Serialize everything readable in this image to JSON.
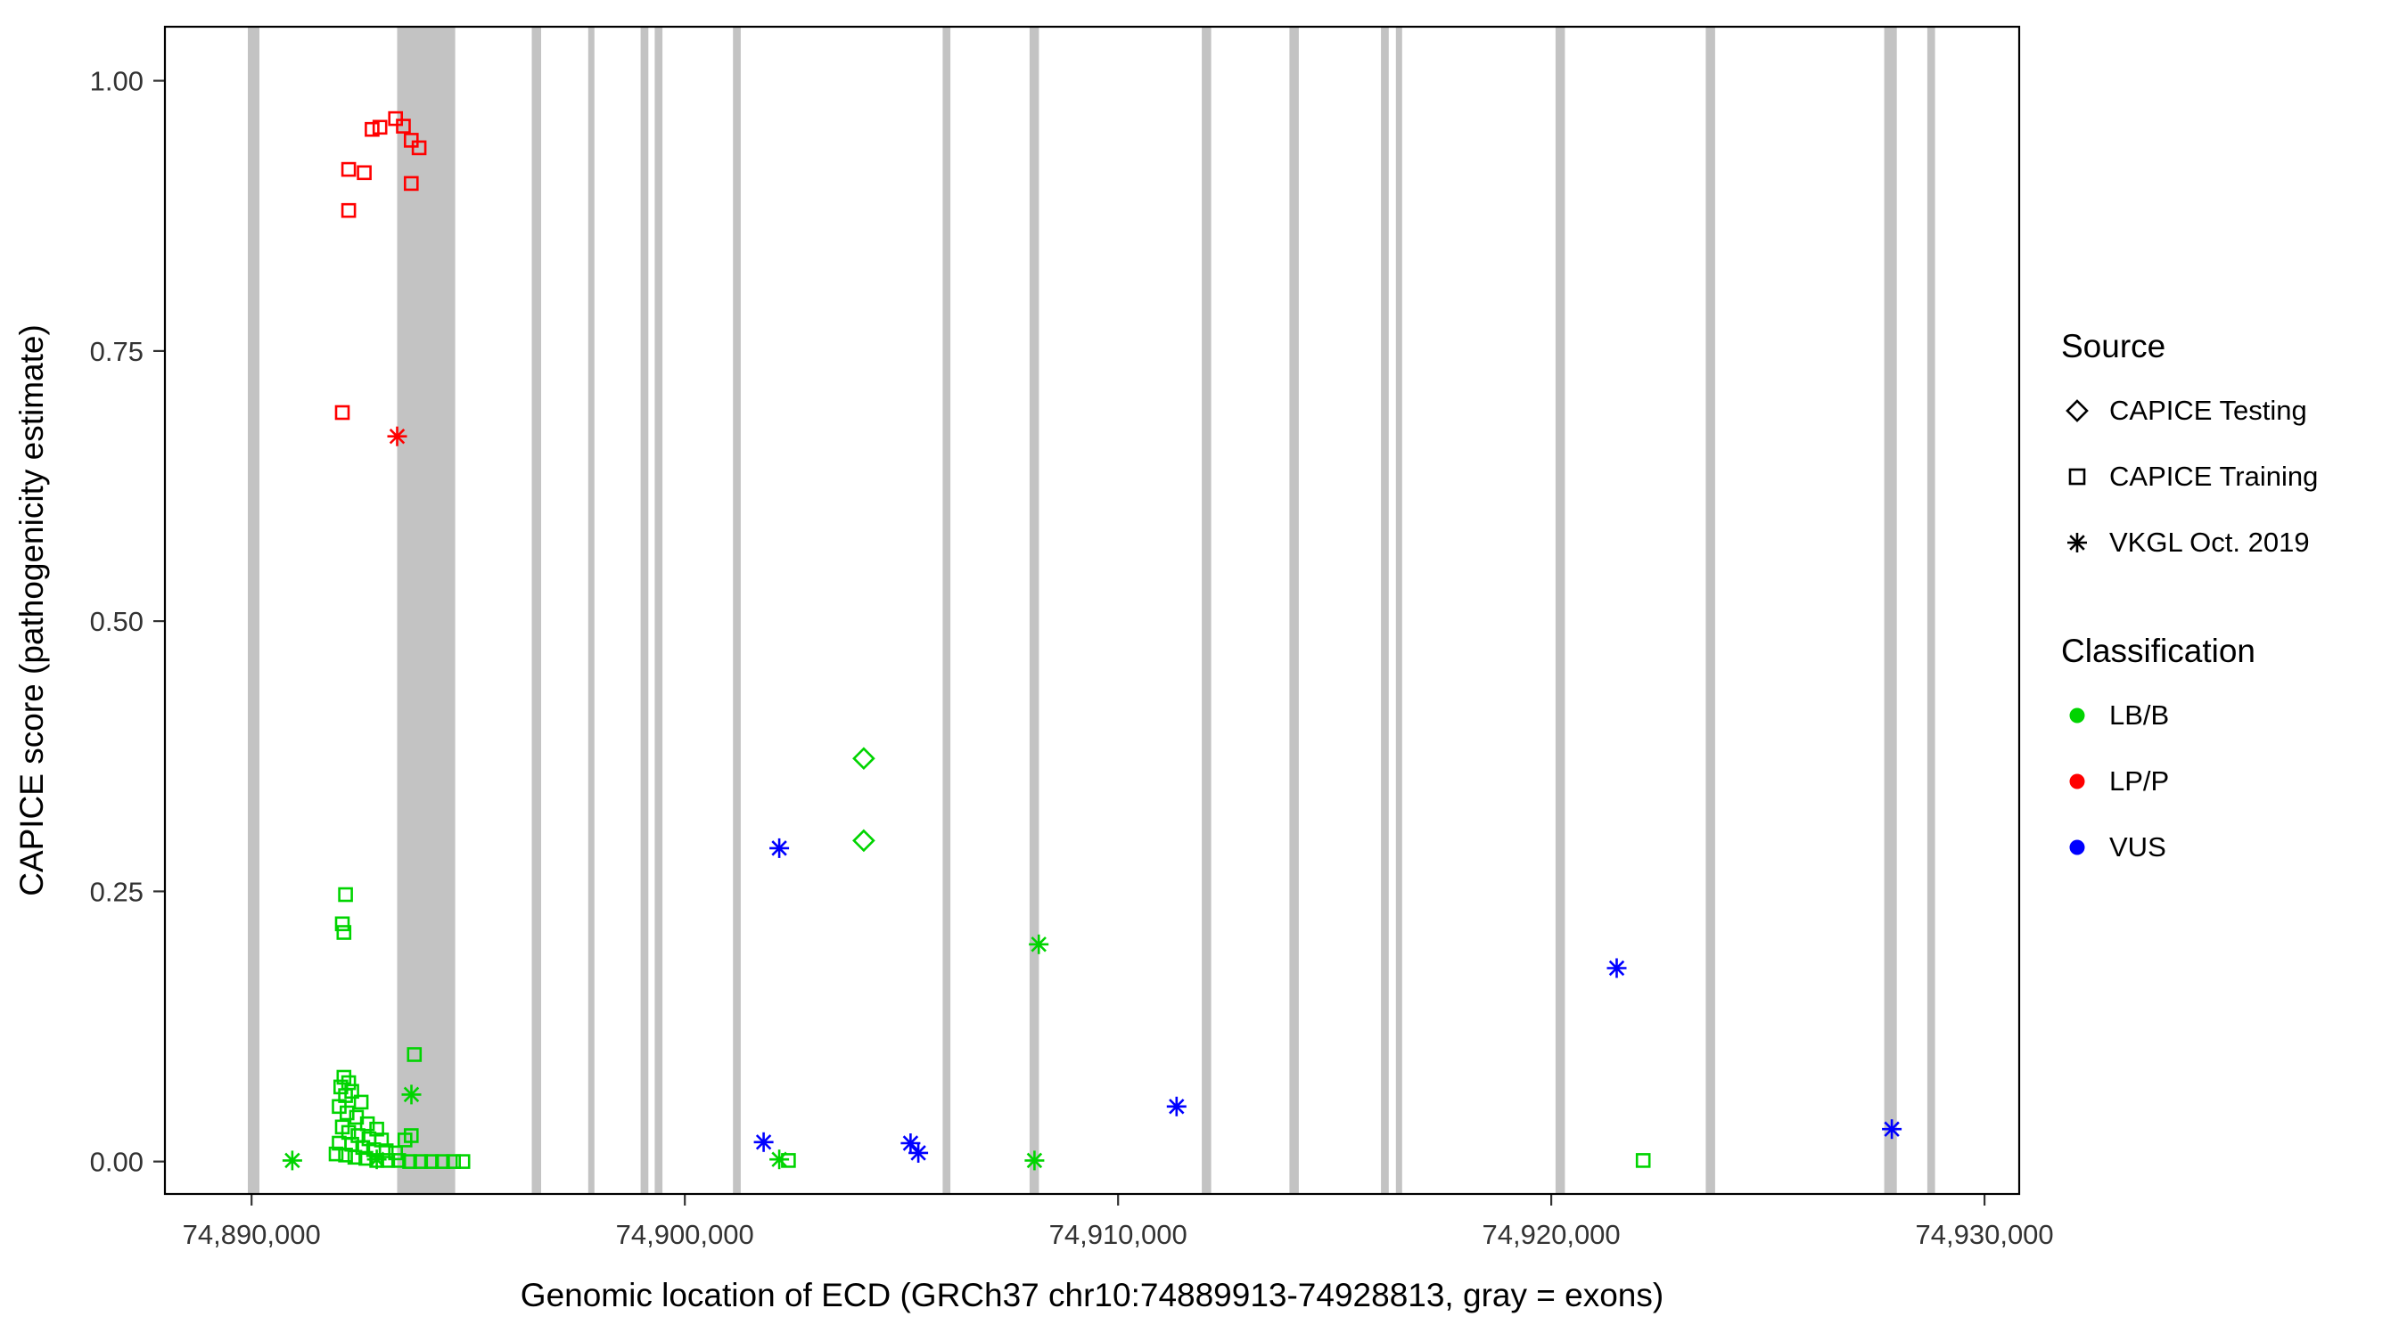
{
  "chart_data": {
    "type": "scatter",
    "title": "",
    "xlabel": "Genomic location of ECD (GRCh37 chr10:74889913-74928813, gray = exons)",
    "ylabel": "CAPICE score (pathogenicity estimate)",
    "x_domain": [
      74888000,
      74930800
    ],
    "y_domain": [
      -0.03,
      1.05
    ],
    "grid": false,
    "legend_position": "right",
    "x_ticks": {
      "values": [
        74890000,
        74900000,
        74910000,
        74920000,
        74930000
      ],
      "labels": [
        "74,890,000",
        "74,900,000",
        "74,910,000",
        "74,920,000",
        "74,930,000"
      ]
    },
    "y_ticks": {
      "values": [
        0.0,
        0.25,
        0.5,
        0.75,
        1.0
      ],
      "labels": [
        "0.00",
        "0.25",
        "0.50",
        "0.75",
        "1.00"
      ]
    },
    "exon_color": "#c3c3c3",
    "exons": [
      [
        74889913,
        74890180
      ],
      [
        74893360,
        74894700
      ],
      [
        74896468,
        74896684
      ],
      [
        74897769,
        74897913
      ],
      [
        74898979,
        74899159
      ],
      [
        74899305,
        74899485
      ],
      [
        74901111,
        74901291
      ],
      [
        74905952,
        74906132
      ],
      [
        74907958,
        74908174
      ],
      [
        74911932,
        74912148
      ],
      [
        74913955,
        74914171
      ],
      [
        74916069,
        74916249
      ],
      [
        74916412,
        74916556
      ],
      [
        74920098,
        74920314
      ],
      [
        74923566,
        74923782
      ],
      [
        74927684,
        74927974
      ],
      [
        74928678,
        74928858
      ]
    ],
    "colors": {
      "LB/B": "#00d400",
      "LP/P": "#ff0000",
      "VUS": "#0000ff"
    },
    "shapes": {
      "CAPICE Testing": "diamond",
      "CAPICE Training": "square",
      "VKGL Oct. 2019": "asterisk"
    },
    "series": [
      {
        "name": "LP/P — CAPICE Training",
        "source": "CAPICE Training",
        "classification": "LP/P",
        "points": [
          [
            74892240,
            0.918
          ],
          [
            74892601,
            0.915
          ],
          [
            74892240,
            0.88
          ],
          [
            74892782,
            0.955
          ],
          [
            74892963,
            0.957
          ],
          [
            74893324,
            0.965
          ],
          [
            74893505,
            0.958
          ],
          [
            74893685,
            0.945
          ],
          [
            74893866,
            0.938
          ],
          [
            74893685,
            0.905
          ],
          [
            74892095,
            0.693
          ]
        ]
      },
      {
        "name": "LP/P — VKGL Oct. 2019",
        "source": "VKGL Oct. 2019",
        "classification": "LP/P",
        "points": [
          [
            74893360,
            0.671
          ]
        ]
      },
      {
        "name": "LB/B — CAPICE Testing",
        "source": "CAPICE Testing",
        "classification": "LB/B",
        "points": [
          [
            74904130,
            0.373
          ],
          [
            74904130,
            0.297
          ]
        ]
      },
      {
        "name": "LB/B — CAPICE Training",
        "source": "CAPICE Training",
        "classification": "LB/B",
        "points": [
          [
            74892168,
            0.247
          ],
          [
            74892095,
            0.22
          ],
          [
            74892131,
            0.212
          ],
          [
            74893758,
            0.099
          ],
          [
            74892131,
            0.078
          ],
          [
            74892240,
            0.073
          ],
          [
            74892059,
            0.069
          ],
          [
            74892312,
            0.065
          ],
          [
            74892168,
            0.061
          ],
          [
            74892529,
            0.055
          ],
          [
            74892023,
            0.051
          ],
          [
            74892204,
            0.045
          ],
          [
            74892421,
            0.041
          ],
          [
            74892674,
            0.035
          ],
          [
            74892095,
            0.032
          ],
          [
            74892890,
            0.03
          ],
          [
            74892240,
            0.027
          ],
          [
            74892457,
            0.024
          ],
          [
            74893685,
            0.024
          ],
          [
            74892710,
            0.021
          ],
          [
            74892999,
            0.02
          ],
          [
            74893541,
            0.02
          ],
          [
            74892023,
            0.017
          ],
          [
            74892312,
            0.016
          ],
          [
            74892565,
            0.013
          ],
          [
            74892818,
            0.011
          ],
          [
            74893107,
            0.01
          ],
          [
            74893324,
            0.008
          ],
          [
            74891951,
            0.007
          ],
          [
            74892168,
            0.006
          ],
          [
            74892385,
            0.004
          ],
          [
            74892638,
            0.003
          ],
          [
            74892890,
            0.001
          ],
          [
            74893143,
            0.001
          ],
          [
            74893396,
            0.001
          ],
          [
            74893649,
            0.0
          ],
          [
            74893902,
            0.0
          ],
          [
            74894155,
            0.0
          ],
          [
            74894408,
            0.0
          ],
          [
            74894661,
            0.0
          ],
          [
            74894877,
            0.0
          ],
          [
            74902392,
            0.001
          ],
          [
            74922120,
            0.001
          ]
        ]
      },
      {
        "name": "LB/B — VKGL Oct. 2019",
        "source": "VKGL Oct. 2019",
        "classification": "LB/B",
        "points": [
          [
            74890940,
            0.001
          ],
          [
            74892890,
            0.002
          ],
          [
            74893690,
            0.062
          ],
          [
            74902180,
            0.002
          ],
          [
            74908170,
            0.201
          ],
          [
            74908070,
            0.001
          ]
        ]
      },
      {
        "name": "VUS — VKGL Oct. 2019",
        "source": "VKGL Oct. 2019",
        "classification": "VUS",
        "points": [
          [
            74902180,
            0.29
          ],
          [
            74901820,
            0.018
          ],
          [
            74905210,
            0.017
          ],
          [
            74905390,
            0.008
          ],
          [
            74911350,
            0.051
          ],
          [
            74921510,
            0.179
          ],
          [
            74927860,
            0.03
          ]
        ]
      }
    ],
    "legend": {
      "source": {
        "title": "Source",
        "items": [
          {
            "label": "CAPICE Testing",
            "shape": "diamond"
          },
          {
            "label": "CAPICE Training",
            "shape": "square"
          },
          {
            "label": "VKGL Oct. 2019",
            "shape": "asterisk"
          }
        ]
      },
      "classification": {
        "title": "Classification",
        "items": [
          {
            "label": "LB/B",
            "color": "#00d400"
          },
          {
            "label": "LP/P",
            "color": "#ff0000"
          },
          {
            "label": "VUS",
            "color": "#0000ff"
          }
        ]
      }
    }
  }
}
